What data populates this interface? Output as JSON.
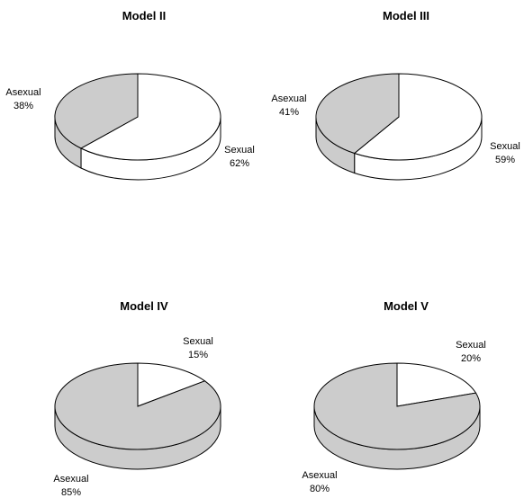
{
  "chart_data": [
    {
      "type": "pie",
      "title": "Model II",
      "slices": [
        {
          "label": "Sexual",
          "value": 62,
          "value_label": "62%"
        },
        {
          "label": "Asexual",
          "value": 38,
          "value_label": "38%"
        }
      ]
    },
    {
      "type": "pie",
      "title": "Model III",
      "slices": [
        {
          "label": "Sexual",
          "value": 59,
          "value_label": "59%"
        },
        {
          "label": "Asexual",
          "value": 41,
          "value_label": "41%"
        }
      ]
    },
    {
      "type": "pie",
      "title": "Model IV",
      "slices": [
        {
          "label": "Sexual",
          "value": 15,
          "value_label": "15%"
        },
        {
          "label": "Asexual",
          "value": 85,
          "value_label": "85%"
        }
      ]
    },
    {
      "type": "pie",
      "title": "Model V",
      "slices": [
        {
          "label": "Sexual",
          "value": 20,
          "value_label": "20%"
        },
        {
          "label": "Asexual",
          "value": 80,
          "value_label": "80%"
        }
      ]
    }
  ],
  "colors": {
    "Sexual": "#ffffff",
    "Asexual": "#cccccc",
    "outline": "#000000"
  }
}
